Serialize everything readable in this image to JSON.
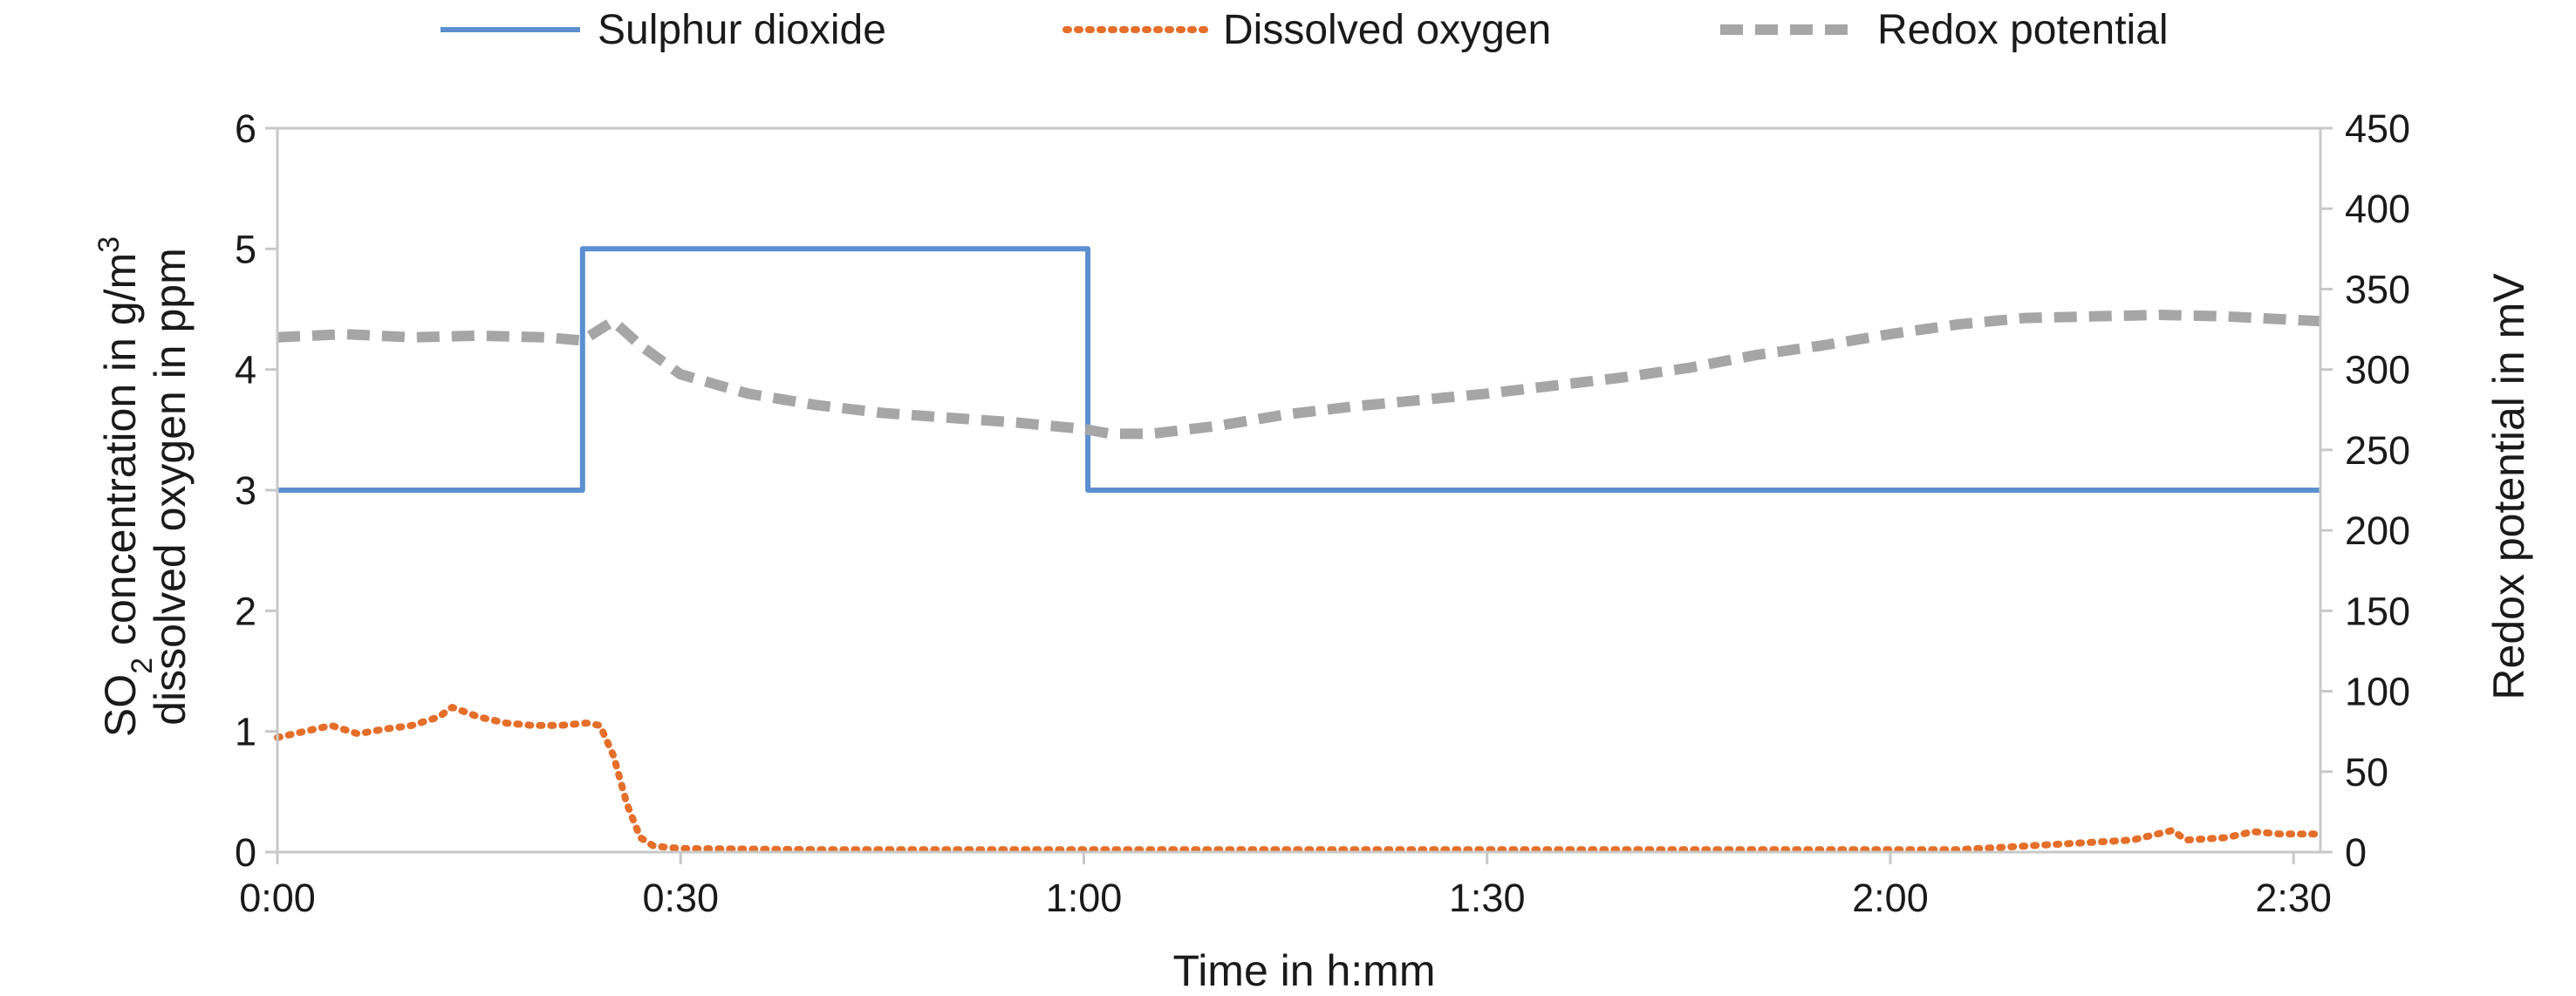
{
  "chart_data": {
    "type": "line",
    "legend": {
      "placement": "top",
      "items": [
        {
          "label": "Sulphur dioxide",
          "color": "#5b8fd0",
          "style": "solid"
        },
        {
          "label": "Dissolved oxygen",
          "color": "#e46f2a",
          "style": "dotted"
        },
        {
          "label": "Redox potential",
          "color": "#a6a6a6",
          "style": "dashed"
        }
      ]
    },
    "xlabel": "Time in h:mm",
    "ylabel_left_line1": "SO",
    "ylabel_left_sub": "2",
    "ylabel_left_line1_rest": " concentration in g/m",
    "ylabel_left_sup": "3",
    "ylabel_left_line2": "dissolved oxygen in ppm",
    "ylabel_right": "Redox potential in mV",
    "x_ticks": [
      "0:00",
      "0:30",
      "1:00",
      "1:30",
      "2:00",
      "2:30"
    ],
    "x_tick_minutes": [
      0,
      30,
      60,
      90,
      120,
      150
    ],
    "xlim": [
      0,
      152
    ],
    "y_left_ticks": [
      "0",
      "1",
      "2",
      "3",
      "4",
      "5",
      "6"
    ],
    "ylim_left": [
      0,
      6
    ],
    "y_right_ticks": [
      "0",
      "50",
      "100",
      "150",
      "200",
      "250",
      "300",
      "350",
      "400",
      "450"
    ],
    "ylim_right": [
      0,
      450
    ],
    "grid": false,
    "series": [
      {
        "name": "Sulphur dioxide",
        "axis": "left",
        "color": "#5b8fd0",
        "style": "solid",
        "x": [
          0,
          22.7,
          22.7,
          60.3,
          60.3,
          152
        ],
        "y": [
          3,
          3,
          5,
          5,
          3,
          3
        ]
      },
      {
        "name": "Dissolved oxygen",
        "axis": "left",
        "color": "#e46f2a",
        "style": "dotted",
        "x": [
          0,
          2,
          4,
          6,
          8,
          10,
          12,
          13,
          15,
          17,
          19,
          21,
          23,
          24,
          25,
          26,
          27,
          28,
          30,
          40,
          60,
          90,
          115,
          125,
          130,
          138,
          141,
          142,
          145,
          147,
          149,
          152
        ],
        "y": [
          0.95,
          1.0,
          1.05,
          0.98,
          1.02,
          1.05,
          1.12,
          1.2,
          1.12,
          1.07,
          1.05,
          1.05,
          1.07,
          1.05,
          0.8,
          0.4,
          0.12,
          0.05,
          0.03,
          0.02,
          0.02,
          0.02,
          0.02,
          0.02,
          0.05,
          0.1,
          0.18,
          0.1,
          0.12,
          0.17,
          0.15,
          0.15
        ]
      },
      {
        "name": "Redox potential",
        "axis": "right",
        "color": "#a6a6a6",
        "style": "dashed",
        "x": [
          0,
          5,
          10,
          15,
          20,
          22.7,
          24,
          25,
          27,
          30,
          35,
          40,
          45,
          50,
          55,
          60,
          62,
          65,
          70,
          75,
          80,
          85,
          90,
          95,
          100,
          105,
          110,
          115,
          120,
          125,
          130,
          135,
          140,
          145,
          152
        ],
        "y": [
          320,
          322,
          320,
          321,
          320,
          318,
          325,
          330,
          315,
          297,
          285,
          278,
          273,
          270,
          267,
          263,
          260,
          260,
          265,
          272,
          277,
          281,
          285,
          290,
          295,
          301,
          309,
          315,
          322,
          328,
          332,
          333,
          334,
          333,
          330
        ]
      }
    ]
  }
}
